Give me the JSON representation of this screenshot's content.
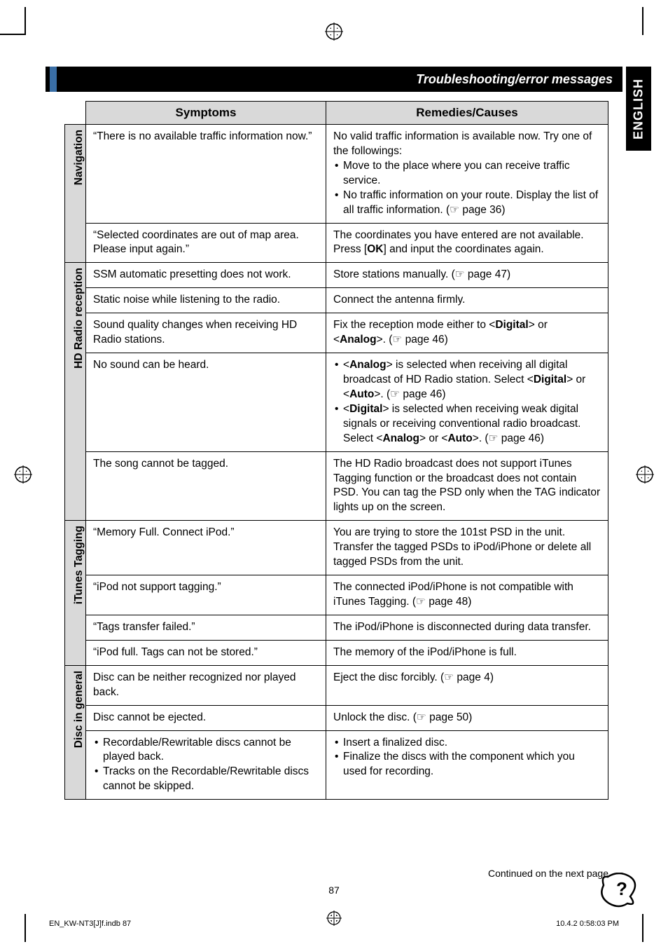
{
  "header": {
    "title": "Troubleshooting/error messages",
    "lang_tab": "ENGLISH",
    "accent_color": "#3a6ea5"
  },
  "table": {
    "head_symptoms": "Symptoms",
    "head_remedies": "Remedies/Causes",
    "sections": {
      "navigation": {
        "label": "Navigation",
        "rows": [
          {
            "symptom": "“There is no available traffic information now.”",
            "remedy_intro": "No valid traffic information is available now. Try one of the followings:",
            "remedy_items": [
              "Move to the place where you can receive traffic service.",
              "No traffic information on your route. Display the list of all traffic information. (☞ page 36)"
            ]
          },
          {
            "symptom": "“Selected coordinates are out of map area. Please input again.”",
            "remedy_html": "The coordinates you have entered are not available. Press [<b>OK</b>] and input the coordinates again."
          }
        ]
      },
      "hdradio": {
        "label": "HD Radio reception",
        "rows": [
          {
            "symptom": "SSM automatic presetting does not work.",
            "remedy": "Store stations manually. (☞ page 47)"
          },
          {
            "symptom": "Static noise while listening to the radio.",
            "remedy": "Connect the antenna firmly."
          },
          {
            "symptom": "Sound quality changes when receiving HD Radio stations.",
            "remedy_html": "Fix the reception mode either to &lt;<b>Digital</b>&gt; or &lt;<b>Analog</b>&gt;. (☞ page 46)"
          },
          {
            "symptom": "No sound can be heard.",
            "remedy_items_html": [
              "&lt;<b>Analog</b>&gt; is selected when receiving all digital broadcast of HD Radio station. Select &lt;<b>Digital</b>&gt; or &lt;<b>Auto</b>&gt;. (☞ page 46)",
              "&lt;<b>Digital</b>&gt; is selected when receiving weak digital signals or receiving conventional radio broadcast. Select &lt;<b>Analog</b>&gt; or &lt;<b>Auto</b>&gt;. (☞ page 46)"
            ]
          },
          {
            "symptom": "The song cannot be tagged.",
            "remedy": "The HD Radio broadcast does not support iTunes Tagging function or the broadcast does not contain PSD. You can tag the PSD only when the TAG indicator lights up on the screen."
          }
        ]
      },
      "itunes": {
        "label": "iTunes Tagging",
        "rows": [
          {
            "symptom": "“Memory Full. Connect iPod.”",
            "remedy": "You are trying to store the 101st PSD in the unit. Transfer the tagged PSDs to iPod/iPhone or delete all tagged PSDs from the unit."
          },
          {
            "symptom": "“iPod not support tagging.”",
            "remedy": "The connected iPod/iPhone is not compatible with iTunes Tagging. (☞ page 48)"
          },
          {
            "symptom": "“Tags transfer failed.”",
            "remedy": "The iPod/iPhone is disconnected during data transfer."
          },
          {
            "symptom": "“iPod full. Tags can not be stored.”",
            "remedy": "The memory of the iPod/iPhone is full."
          }
        ]
      },
      "disc": {
        "label": "Disc in general",
        "rows": [
          {
            "symptom": "Disc can be neither recognized nor played back.",
            "remedy": "Eject the disc forcibly. (☞ page 4)"
          },
          {
            "symptom": "Disc cannot be ejected.",
            "remedy": "Unlock the disc. (☞ page 50)"
          },
          {
            "symptom_items": [
              "Recordable/Rewritable discs cannot be played back.",
              "Tracks on the Recordable/Rewritable discs cannot be skipped."
            ],
            "remedy_items": [
              "Insert a finalized disc.",
              "Finalize the discs with the component which you used for recording."
            ]
          }
        ]
      }
    }
  },
  "footer": {
    "continued": "Continued on the next page",
    "pagenum": "87",
    "left": "EN_KW-NT3[J]f.indb   87",
    "right": "10.4.2   0:58:03 PM"
  }
}
